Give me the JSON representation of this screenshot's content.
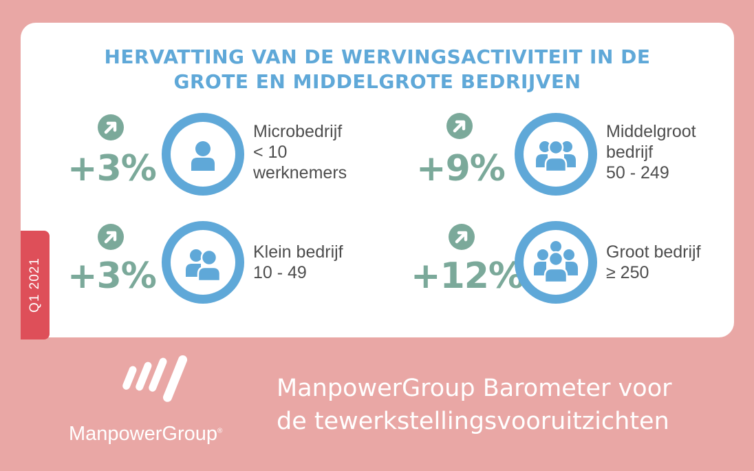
{
  "title": {
    "line1": "HERVATTING VAN DE WERVINGSACTIVITEIT IN DE",
    "line2": "GROTE EN MIDDELGROTE BEDRIJVEN"
  },
  "period_label": "Q1 2021",
  "stats": [
    {
      "change": "+3%",
      "icon": "single-person-icon",
      "lines": [
        "Microbedrijf",
        "< 10",
        "werknemers"
      ]
    },
    {
      "change": "+9%",
      "icon": "group-of-people-icon",
      "lines": [
        "Middelgroot",
        "bedrijf",
        "50 - 249"
      ]
    },
    {
      "change": "+3%",
      "icon": "two-people-icon",
      "lines": [
        "Klein bedrijf",
        "10 - 49"
      ]
    },
    {
      "change": "+12%",
      "icon": "crowd-of-people-icon",
      "lines": [
        "Groot bedrijf",
        "≥ 250"
      ]
    }
  ],
  "brand": {
    "name": "ManpowerGroup",
    "mark": "®"
  },
  "footer": {
    "line1": "ManpowerGroup Barometer voor",
    "line2": "de tewerkstellingsvooruitzichten"
  },
  "colors": {
    "background": "#e9a7a5",
    "title": "#5fa8d8",
    "ring": "#5fa8d8",
    "percentage": "#7ba99a",
    "tab": "#de4f59"
  }
}
